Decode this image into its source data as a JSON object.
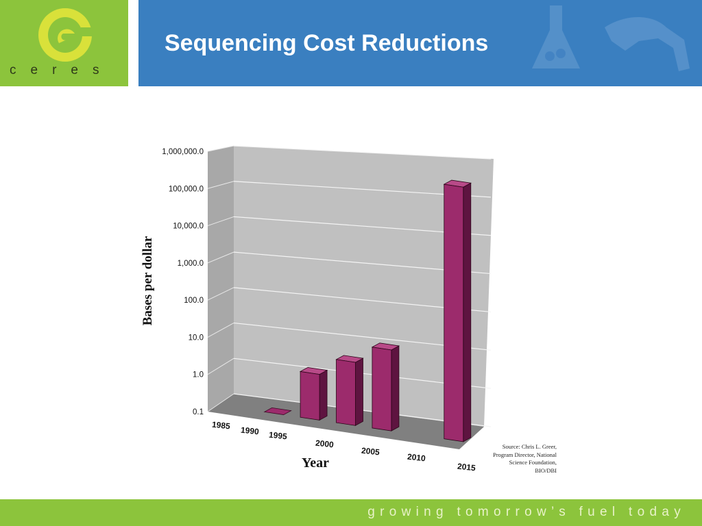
{
  "slide": {
    "title": "Sequencing Cost Reductions",
    "logo_text": "ceres",
    "tagline": "growing tomorrow’s fuel today",
    "source_note": "Source: Chris L. Greer, Program Director, National Science Foundation, BIO/DBI"
  },
  "colors": {
    "header_blue": "#3a7fc0",
    "brand_green": "#8cc43c",
    "logo_yellow": "#d9e13a",
    "bar_color": "#9c2b6c"
  },
  "icons": [
    "ceres-logo-icon",
    "flask-icon",
    "fuel-nozzle-icon"
  ],
  "chart_data": {
    "type": "bar",
    "style": "3d",
    "scale": "log",
    "categories": [
      "1985",
      "1990",
      "1995",
      "2000",
      "2005",
      "2010",
      "2015"
    ],
    "values": [
      null,
      0.1,
      1.7,
      5.0,
      15.0,
      null,
      700000.0
    ],
    "xlabel": "Year",
    "ylabel": "Bases per dollar",
    "y_ticks": [
      "0.1",
      "1.0",
      "10.0",
      "100.0",
      "1,000.0",
      "10,000.0",
      "100,000.0",
      "1,000,000.0"
    ],
    "ylim": [
      0.1,
      1000000
    ],
    "grid": true,
    "legend": "none"
  }
}
